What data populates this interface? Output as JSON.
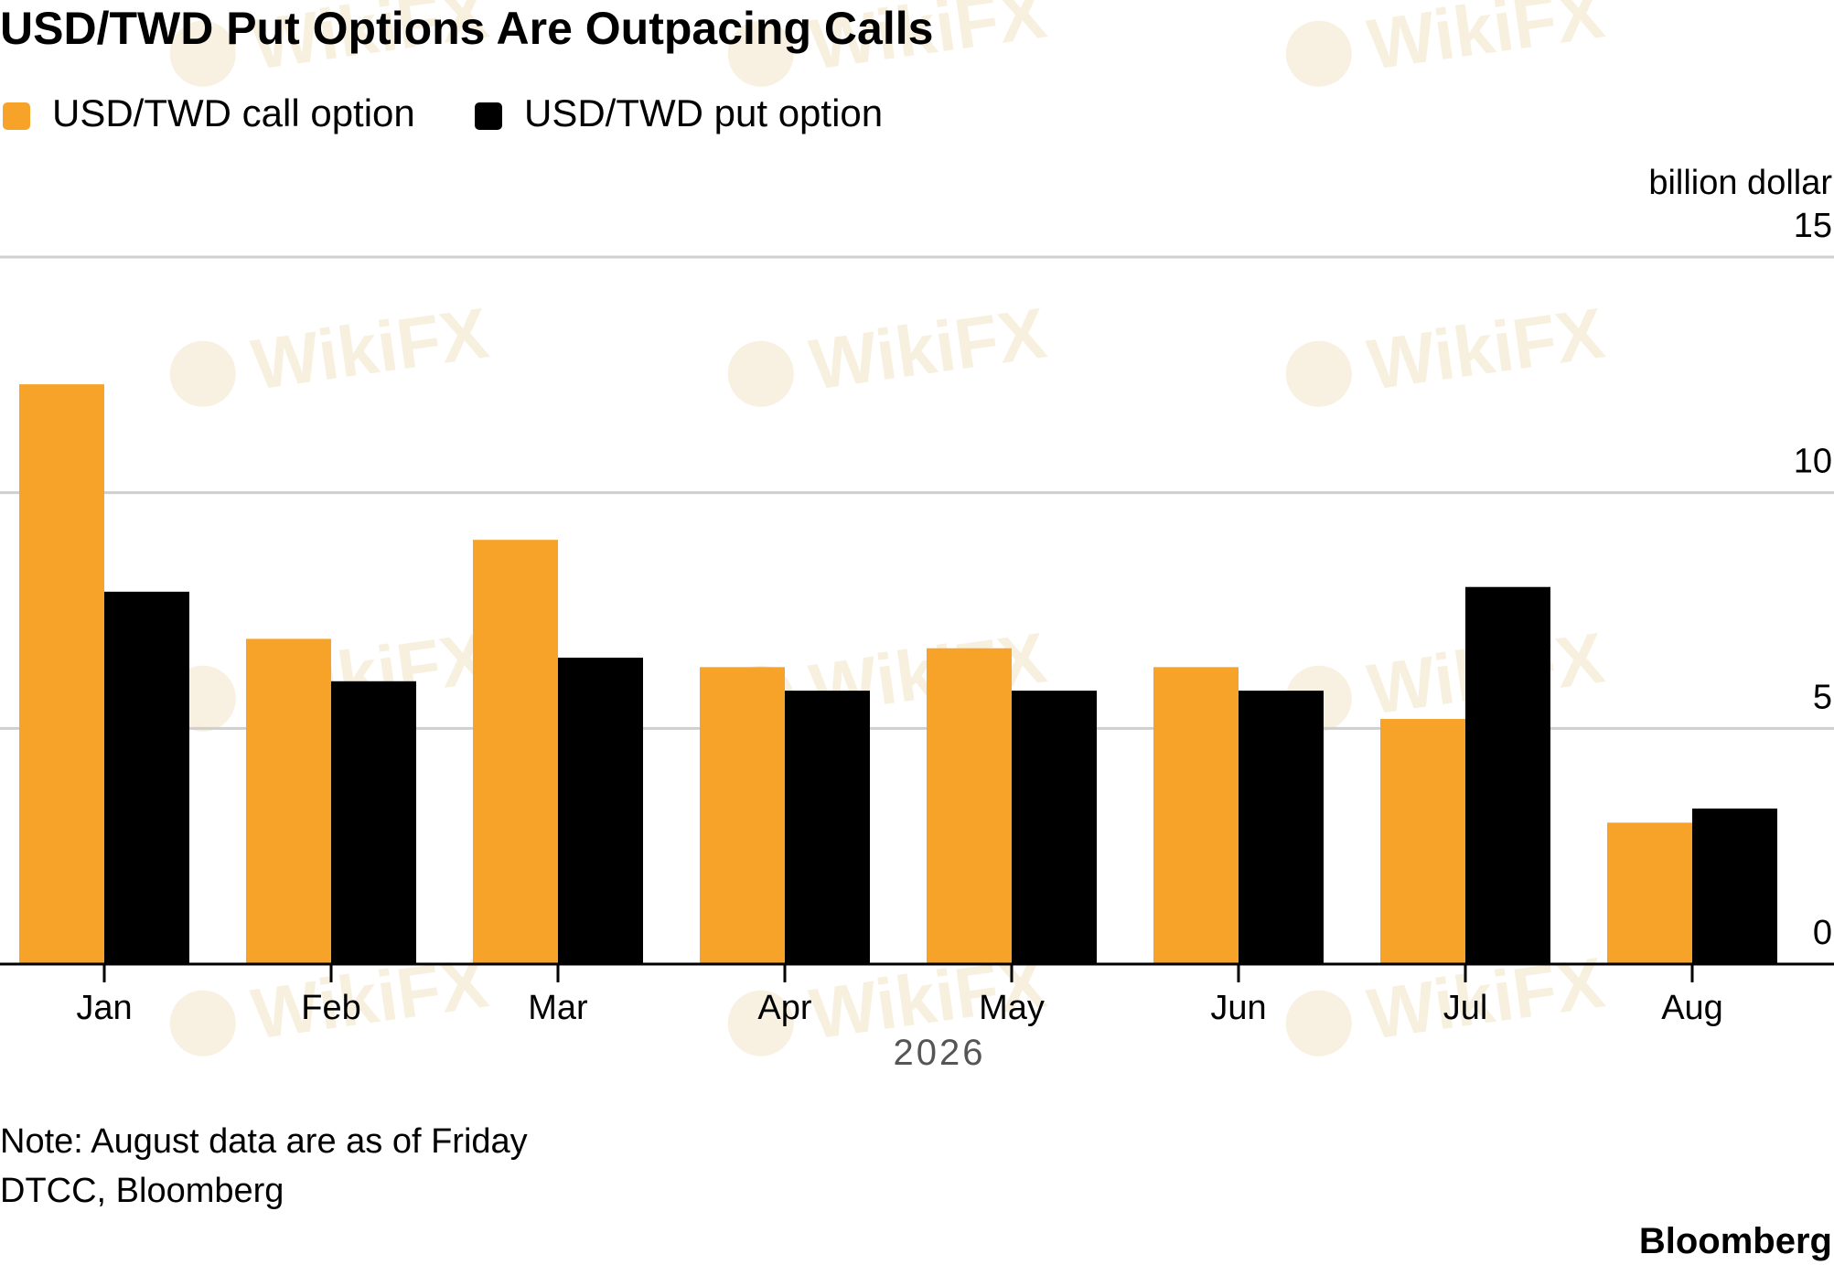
{
  "chart_data": {
    "type": "bar",
    "title": "USD/TWD Put Options Are Outpacing Calls",
    "ylabel": "billion dollar",
    "xlabel": "2026",
    "ylim": [
      0,
      15
    ],
    "yticks": [
      0,
      5,
      10,
      15
    ],
    "grid": true,
    "legend_position": "top-left",
    "categories": [
      "Jan",
      "Feb",
      "Mar",
      "Apr",
      "May",
      "Jun",
      "Jul",
      "Aug"
    ],
    "series": [
      {
        "name": "USD/TWD call option",
        "color": "#f7a229",
        "values": [
          12.3,
          6.9,
          9.0,
          6.3,
          6.7,
          6.3,
          5.2,
          3.0
        ]
      },
      {
        "name": "USD/TWD put option",
        "color": "#000000",
        "values": [
          7.9,
          6.0,
          6.5,
          5.8,
          5.8,
          5.8,
          8.0,
          3.3
        ]
      }
    ],
    "note": "Note: August data are as of Friday",
    "source": "DTCC, Bloomberg",
    "brand": "Bloomberg"
  },
  "watermark": {
    "text": "WikiFX"
  }
}
